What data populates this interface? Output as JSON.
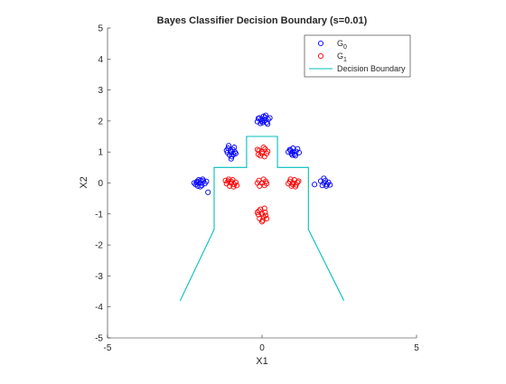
{
  "chart_data": {
    "type": "scatter",
    "title": "Bayes Classifier Decision Boundary (s=0.01)",
    "xlabel": "X1",
    "ylabel": "X2",
    "xlim": [
      -5,
      5
    ],
    "ylim": [
      -5,
      5
    ],
    "xticks": [
      "-5",
      "0",
      "5"
    ],
    "yticks": [
      "5",
      "4",
      "3",
      "2",
      "1",
      "0",
      "-1",
      "-2",
      "-3",
      "-4",
      "-5"
    ],
    "grid": false,
    "legend_position": "top-right",
    "legend": [
      {
        "label": "G",
        "sub": "0",
        "marker": "circle",
        "color": "#0000ff"
      },
      {
        "label": "G",
        "sub": "1",
        "marker": "circle",
        "color": "#ff0000"
      },
      {
        "label": "Decision Boundary",
        "marker": "line",
        "color": "#00bfbf"
      }
    ],
    "series": [
      {
        "name": "G0",
        "color": "#0000ff",
        "marker": "circle",
        "points": [
          [
            0.0,
            2.0
          ],
          [
            -0.12,
            2.08
          ],
          [
            0.1,
            2.12
          ],
          [
            0.2,
            2.05
          ],
          [
            -0.05,
            1.92
          ],
          [
            0.15,
            1.95
          ],
          [
            0.05,
            2.15
          ],
          [
            -0.15,
            1.98
          ],
          [
            0.25,
            2.1
          ],
          [
            0.08,
            2.02
          ],
          [
            -0.08,
            2.1
          ],
          [
            0.18,
            1.9
          ],
          [
            0.12,
            2.18
          ],
          [
            -0.02,
            2.05
          ],
          [
            0.02,
            1.95
          ],
          [
            -1.0,
            1.0
          ],
          [
            -1.1,
            1.12
          ],
          [
            -0.95,
            1.08
          ],
          [
            -0.88,
            1.0
          ],
          [
            -1.05,
            0.9
          ],
          [
            -1.12,
            0.98
          ],
          [
            -0.92,
            0.92
          ],
          [
            -1.0,
            0.78
          ],
          [
            -1.08,
            1.2
          ],
          [
            -0.9,
            1.15
          ],
          [
            -1.02,
            1.05
          ],
          [
            -0.85,
            0.95
          ],
          [
            -1.15,
            1.05
          ],
          [
            -0.98,
            0.85
          ],
          [
            1.0,
            1.0
          ],
          [
            0.9,
            1.08
          ],
          [
            1.1,
            1.02
          ],
          [
            1.05,
            0.92
          ],
          [
            0.95,
            0.95
          ],
          [
            1.15,
            1.1
          ],
          [
            0.85,
            1.0
          ],
          [
            1.0,
            1.12
          ],
          [
            1.08,
            0.88
          ],
          [
            0.92,
            1.05
          ],
          [
            1.2,
            0.98
          ],
          [
            0.98,
            0.9
          ],
          [
            -2.0,
            0.0
          ],
          [
            -2.1,
            0.05
          ],
          [
            -1.95,
            -0.08
          ],
          [
            -2.15,
            -0.05
          ],
          [
            -1.9,
            0.06
          ],
          [
            -2.05,
            0.1
          ],
          [
            -1.85,
            -0.02
          ],
          [
            -2.0,
            -0.12
          ],
          [
            -2.12,
            0.02
          ],
          [
            -1.92,
            0.12
          ],
          [
            -1.8,
            0.05
          ],
          [
            -2.08,
            -0.1
          ],
          [
            -1.75,
            -0.3
          ],
          [
            -1.98,
            0.08
          ],
          [
            -2.2,
            0.0
          ],
          [
            2.0,
            0.0
          ],
          [
            1.9,
            0.06
          ],
          [
            2.1,
            -0.05
          ],
          [
            2.05,
            0.08
          ],
          [
            1.95,
            -0.08
          ],
          [
            2.15,
            0.02
          ],
          [
            2.0,
            0.15
          ],
          [
            2.2,
            -0.06
          ],
          [
            1.7,
            -0.05
          ],
          [
            2.08,
            -0.1
          ]
        ]
      },
      {
        "name": "G1",
        "color": "#ff0000",
        "marker": "circle",
        "points": [
          [
            0.0,
            1.0
          ],
          [
            -0.1,
            1.05
          ],
          [
            0.1,
            1.1
          ],
          [
            0.15,
            0.95
          ],
          [
            -0.12,
            0.92
          ],
          [
            0.05,
            1.15
          ],
          [
            -0.05,
            0.88
          ],
          [
            0.18,
            1.02
          ],
          [
            0.0,
            0.95
          ],
          [
            -0.15,
            1.08
          ],
          [
            0.08,
            0.85
          ],
          [
            -1.0,
            0.0
          ],
          [
            -1.1,
            0.06
          ],
          [
            -0.9,
            -0.05
          ],
          [
            -1.05,
            -0.1
          ],
          [
            -0.95,
            0.1
          ],
          [
            -1.15,
            -0.02
          ],
          [
            -0.85,
            0.02
          ],
          [
            -1.08,
            0.12
          ],
          [
            -0.92,
            -0.12
          ],
          [
            -1.0,
            0.05
          ],
          [
            -0.82,
            -0.08
          ],
          [
            -1.18,
            0.08
          ],
          [
            1.0,
            0.0
          ],
          [
            0.9,
            0.05
          ],
          [
            1.1,
            -0.06
          ],
          [
            1.05,
            0.1
          ],
          [
            0.95,
            -0.1
          ],
          [
            1.15,
            0.02
          ],
          [
            0.85,
            -0.02
          ],
          [
            1.08,
            -0.12
          ],
          [
            0.92,
            0.12
          ],
          [
            1.0,
            -0.05
          ],
          [
            1.18,
            0.06
          ],
          [
            0.0,
            0.0
          ],
          [
            -0.1,
            0.08
          ],
          [
            0.08,
            -0.08
          ],
          [
            0.12,
            0.05
          ],
          [
            -0.08,
            -0.1
          ],
          [
            0.05,
            0.12
          ],
          [
            -0.15,
            0.0
          ],
          [
            0.15,
            -0.02
          ],
          [
            0.0,
            -1.0
          ],
          [
            -0.1,
            -0.9
          ],
          [
            0.1,
            -0.95
          ],
          [
            0.05,
            -1.1
          ],
          [
            -0.08,
            -1.15
          ],
          [
            0.12,
            -1.05
          ],
          [
            -0.12,
            -1.02
          ],
          [
            0.02,
            -1.2
          ],
          [
            -0.05,
            -0.85
          ],
          [
            0.08,
            -0.82
          ],
          [
            0.15,
            -1.15
          ],
          [
            -0.15,
            -0.95
          ],
          [
            0.0,
            -1.25
          ]
        ]
      },
      {
        "name": "Decision Boundary",
        "color": "#00bfbf",
        "line": true,
        "points": [
          [
            -2.65,
            -3.8
          ],
          [
            -1.55,
            -1.5
          ],
          [
            -1.55,
            0.5
          ],
          [
            -0.5,
            0.5
          ],
          [
            -0.5,
            1.5
          ],
          [
            0.5,
            1.5
          ],
          [
            0.5,
            0.5
          ],
          [
            1.5,
            0.5
          ],
          [
            1.5,
            -1.5
          ],
          [
            2.65,
            -3.8
          ]
        ]
      }
    ]
  }
}
